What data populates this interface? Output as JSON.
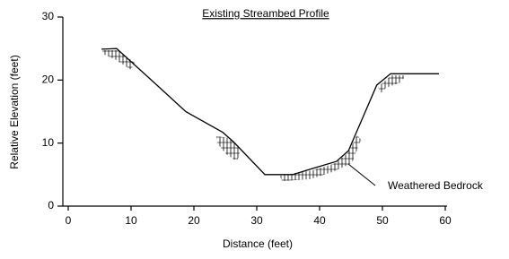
{
  "chart_data": {
    "type": "line",
    "title": "Existing Streambed Profile",
    "x_label": "Distance (feet)",
    "y_label": "Relative Elevation (feet)",
    "x": [
      5.3,
      7.7,
      14,
      18.7,
      24.6,
      26.3,
      31.3,
      35.7,
      39,
      42.7,
      44.6,
      49.1,
      51.3,
      59
    ],
    "series": [
      {
        "name": "Existing Streambed Profile",
        "color": "#000000",
        "values": [
          24.9,
          25,
          19.3,
          15,
          11.7,
          10.2,
          5,
          5,
          6,
          7.1,
          8.8,
          19.2,
          21,
          21
        ]
      }
    ],
    "xlim": [
      0,
      60
    ],
    "xticks": [
      0,
      10,
      20,
      30,
      40,
      50,
      60
    ],
    "ylim": [
      0,
      30
    ],
    "yticks": [
      0,
      10,
      20,
      30
    ],
    "grid": false,
    "annotations": [
      {
        "text": "Weathered Bedrock",
        "x": 43,
        "y": 7
      }
    ]
  }
}
